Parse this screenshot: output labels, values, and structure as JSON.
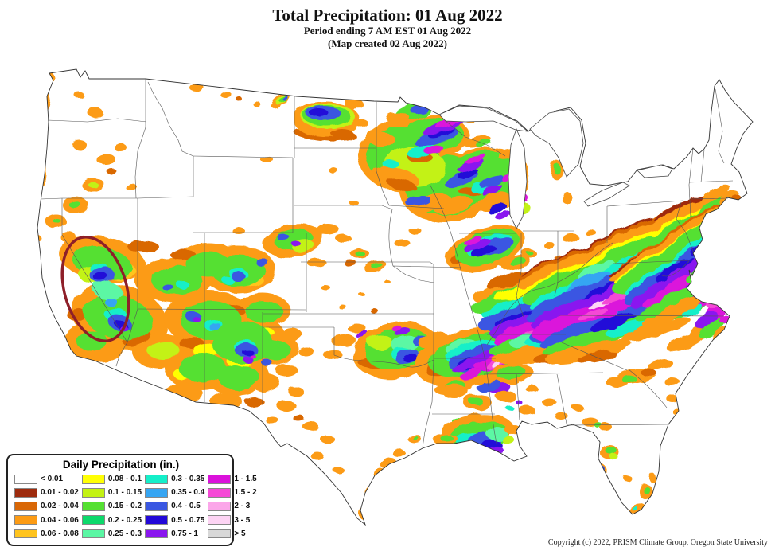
{
  "header": {
    "title": "Total Precipitation: 01 Aug 2022",
    "subtitle": "Period ending 7 AM EST 01 Aug 2022",
    "created_note": "(Map created 02 Aug 2022)"
  },
  "legend": {
    "title": "Daily Precipitation (in.)",
    "entries": [
      {
        "label": "< 0.01",
        "color": "#FFFFFF"
      },
      {
        "label": "0.01 - 0.02",
        "color": "#9E2B0E"
      },
      {
        "label": "0.02 - 0.04",
        "color": "#D96706"
      },
      {
        "label": "0.04 - 0.06",
        "color": "#FC9B14"
      },
      {
        "label": "0.06 - 0.08",
        "color": "#FFC41E"
      },
      {
        "label": "0.08 - 0.1",
        "color": "#FFFF05"
      },
      {
        "label": "0.1 - 0.15",
        "color": "#C3F213"
      },
      {
        "label": "0.15 - 0.2",
        "color": "#55E032"
      },
      {
        "label": "0.2 - 0.25",
        "color": "#0CD96B"
      },
      {
        "label": "0.25 - 0.3",
        "color": "#5BF7A4"
      },
      {
        "label": "0.3 - 0.35",
        "color": "#14EFC9"
      },
      {
        "label": "0.35 - 0.4",
        "color": "#36A5F2"
      },
      {
        "label": "0.4 - 0.5",
        "color": "#3A57E2"
      },
      {
        "label": "0.5 - 0.75",
        "color": "#2208D8"
      },
      {
        "label": "0.75 - 1",
        "color": "#8A15EF"
      },
      {
        "label": "1 - 1.5",
        "color": "#DB12DB"
      },
      {
        "label": "1.5 - 2",
        "color": "#F549D6"
      },
      {
        "label": "2 - 3",
        "color": "#FBA6E9"
      },
      {
        "label": "3 - 5",
        "color": "#FDD4F4"
      },
      {
        "label": "> 5",
        "color": "#D8D8D8"
      }
    ]
  },
  "annotation": {
    "shape": "ellipse",
    "color": "#8E1F29"
  },
  "footer": {
    "copyright": "Copyright (c) 2022, PRISM Climate Group, Oregon State University"
  }
}
